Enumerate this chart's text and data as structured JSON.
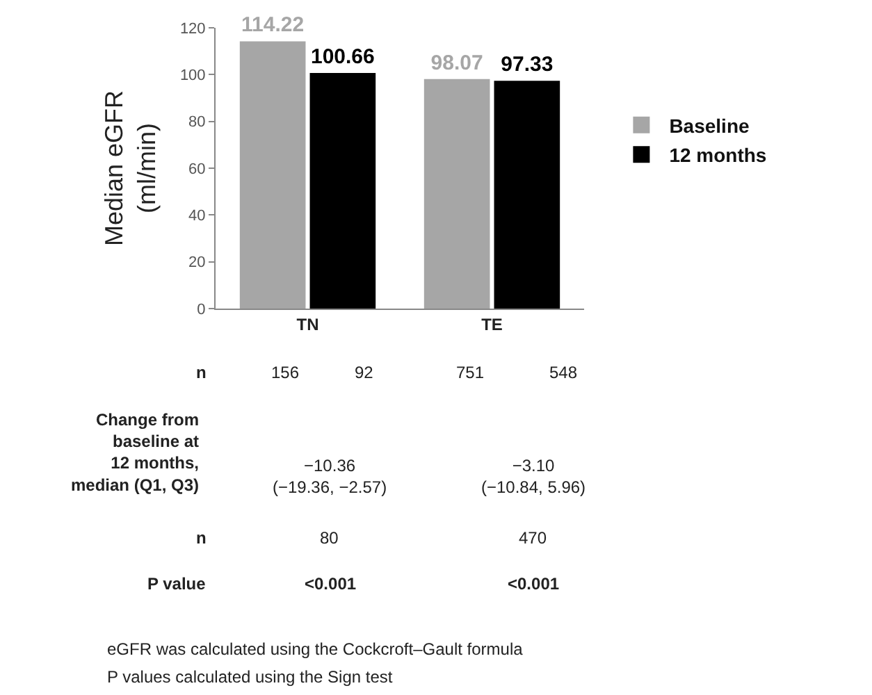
{
  "chart_data": {
    "type": "bar",
    "ylabel": "Median eGFR\n(ml/min)",
    "categories": [
      "TN",
      "TE"
    ],
    "series": [
      {
        "name": "Baseline",
        "color": "#a6a6a6",
        "values": [
          114.22,
          98.07
        ]
      },
      {
        "name": "12 months",
        "color": "#000000",
        "values": [
          100.66,
          97.33
        ]
      }
    ],
    "ylim": [
      0,
      120
    ],
    "yticks": [
      0,
      20,
      40,
      60,
      80,
      100,
      120
    ],
    "grid": false,
    "legend": "right",
    "data_labels": true,
    "annotations": [
      "n",
      "156",
      "92",
      "751",
      "548",
      "Change from\nbaseline at\n12 months,\nmedian (Q1, Q3)",
      "−10.36\n(−19.36, −2.57)",
      "−3.10\n(−10.84, 5.96)",
      "n",
      "80",
      "470",
      "P value",
      "<0.001",
      "<0.001",
      "eGFR was calculated using the Cockcroft–Gault formula",
      "P values calculated using the Sign test"
    ]
  }
}
